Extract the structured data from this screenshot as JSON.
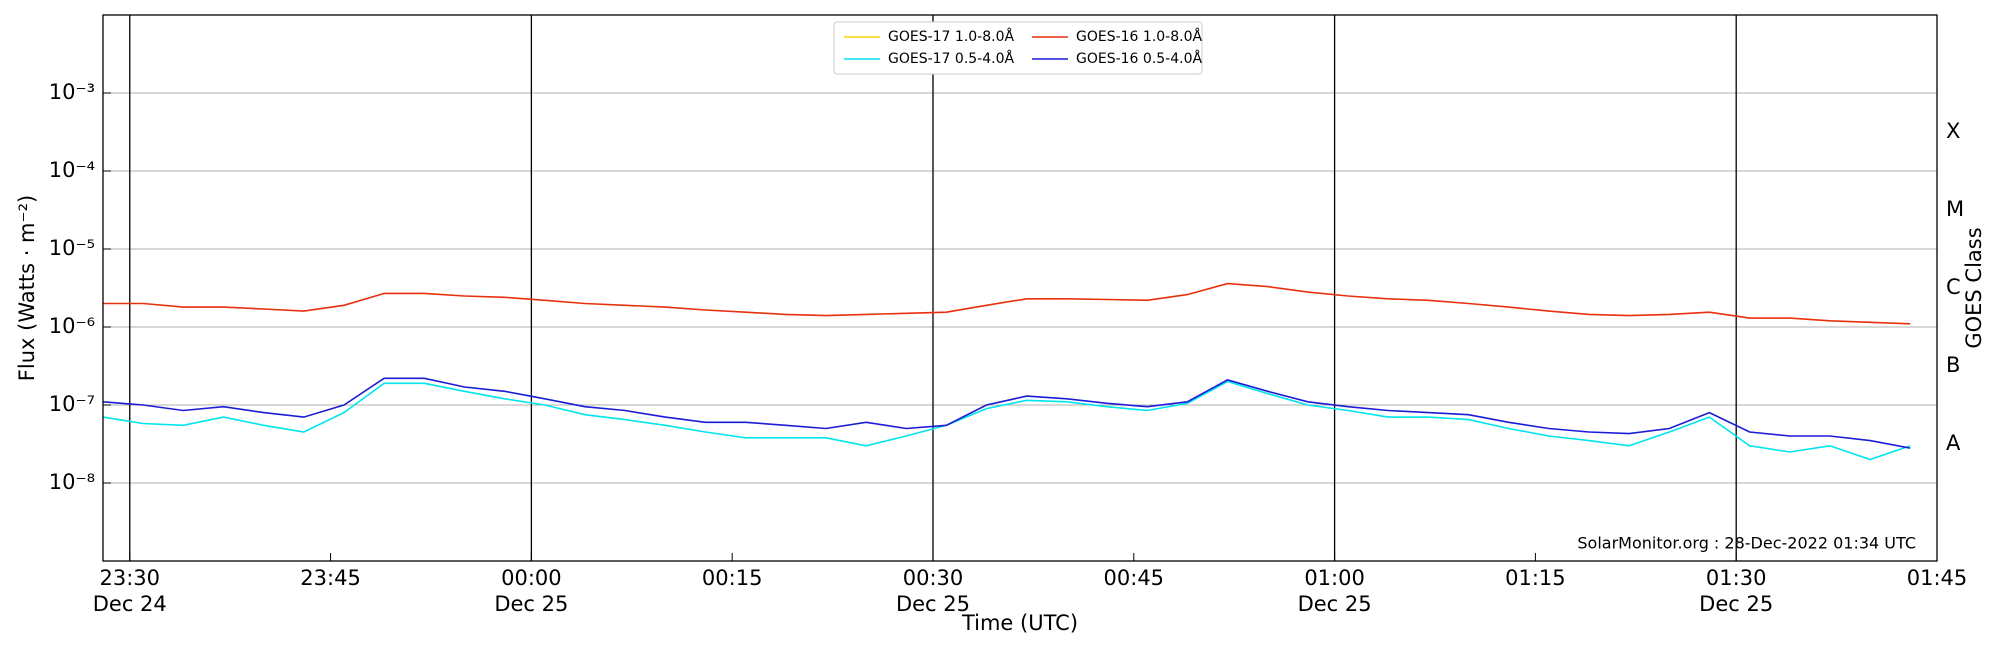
{
  "chart_data": {
    "type": "line",
    "y_label": "Flux (Watts · m⁻²)",
    "x_label": "Time (UTC)",
    "y2_label": "GOES Class",
    "footer": "SolarMonitor.org : 28-Dec-2022 01:34 UTC",
    "log_scale": true,
    "grid": true,
    "legend": "upper center",
    "xlim": [
      "12-24 23:28",
      "12-25 01:45"
    ],
    "xticks": [
      {
        "value": "12-24 23:30",
        "label": [
          "23:30",
          "Dec 24"
        ]
      },
      {
        "value": "12-24 23:45",
        "label": [
          "23:45"
        ]
      },
      {
        "value": "12-25 00:00",
        "label": [
          "00:00",
          "Dec 25"
        ]
      },
      {
        "value": "12-25 00:15",
        "label": [
          "00:15"
        ]
      },
      {
        "value": "12-25 00:30",
        "label": [
          "00:30",
          "Dec 25"
        ]
      },
      {
        "value": "12-25 00:45",
        "label": [
          "00:45"
        ]
      },
      {
        "value": "12-25 01:00",
        "label": [
          "01:00",
          "Dec 25"
        ]
      },
      {
        "value": "12-25 01:15",
        "label": [
          "01:15"
        ]
      },
      {
        "value": "12-25 01:30",
        "label": [
          "01:30",
          "Dec 25"
        ]
      },
      {
        "value": "12-25 01:45",
        "label": [
          "01:45"
        ]
      }
    ],
    "ylim": [
      1e-09,
      0.01
    ],
    "yticks": [
      {
        "value": 1e-08,
        "label": "10⁻⁸"
      },
      {
        "value": 1e-07,
        "label": "10⁻⁷"
      },
      {
        "value": 1e-06,
        "label": "10⁻⁶"
      },
      {
        "value": 1e-05,
        "label": "10⁻⁵"
      },
      {
        "value": 0.0001,
        "label": "10⁻⁴"
      },
      {
        "value": 0.001,
        "label": "10⁻³"
      }
    ],
    "y2lim": [
      1e-09,
      0.01
    ],
    "y2ticks": [
      {
        "value": 3.16e-08,
        "label": "A"
      },
      {
        "value": 3.16e-07,
        "label": "B"
      },
      {
        "value": 3.16e-06,
        "label": "C"
      },
      {
        "value": 3.16e-05,
        "label": "M"
      },
      {
        "value": 0.000316,
        "label": "X"
      }
    ],
    "x": [
      "12-24 23:28",
      "12-24 23:31",
      "12-24 23:34",
      "12-24 23:37",
      "12-24 23:40",
      "12-24 23:43",
      "12-24 23:46",
      "12-24 23:49",
      "12-24 23:52",
      "12-24 23:55",
      "12-24 23:58",
      "12-25 00:01",
      "12-25 00:04",
      "12-25 00:07",
      "12-25 00:10",
      "12-25 00:13",
      "12-25 00:16",
      "12-25 00:19",
      "12-25 00:22",
      "12-25 00:25",
      "12-25 00:28",
      "12-25 00:31",
      "12-25 00:34",
      "12-25 00:37",
      "12-25 00:40",
      "12-25 00:43",
      "12-25 00:46",
      "12-25 00:49",
      "12-25 00:52",
      "12-25 00:55",
      "12-25 00:58",
      "12-25 01:01",
      "12-25 01:04",
      "12-25 01:07",
      "12-25 01:10",
      "12-25 01:13",
      "12-25 01:16",
      "12-25 01:19",
      "12-25 01:22",
      "12-25 01:25",
      "12-25 01:28",
      "12-25 01:31",
      "12-25 01:34",
      "12-25 01:37",
      "12-25 01:40",
      "12-25 01:43"
    ],
    "series": [
      {
        "name": "GOES-17 1.0-8.0Å",
        "color": "#ffd700",
        "values": [
          null,
          null,
          null,
          null,
          null,
          null,
          null,
          null,
          null,
          null,
          null,
          null,
          null,
          null,
          null,
          null,
          null,
          null,
          null,
          null,
          null,
          null,
          null,
          null,
          null,
          null,
          null,
          null,
          null,
          null,
          null,
          null,
          null,
          null,
          null,
          null,
          null,
          null,
          null,
          null,
          null,
          null,
          null,
          null,
          null,
          null
        ]
      },
      {
        "name": "GOES-17 0.5-4.0Å",
        "color": "#00e5ee",
        "values": [
          7e-08,
          5.8e-08,
          5.5e-08,
          7e-08,
          5.5e-08,
          4.5e-08,
          8e-08,
          1.9e-07,
          1.9e-07,
          1.5e-07,
          1.2e-07,
          1e-07,
          7.5e-08,
          6.5e-08,
          5.5e-08,
          4.5e-08,
          3.8e-08,
          3.8e-08,
          3.8e-08,
          3e-08,
          4e-08,
          5.5e-08,
          9e-08,
          1.15e-07,
          1.1e-07,
          9.5e-08,
          8.5e-08,
          1.05e-07,
          2e-07,
          1.4e-07,
          1e-07,
          8.5e-08,
          7e-08,
          7e-08,
          6.5e-08,
          5e-08,
          4e-08,
          3.5e-08,
          3e-08,
          4.5e-08,
          7e-08,
          3e-08,
          2.5e-08,
          3e-08,
          2e-08,
          3e-08
        ]
      },
      {
        "name": "GOES-16 1.0-8.0Å",
        "color": "#e8300e",
        "values": [
          2e-06,
          2e-06,
          1.8e-06,
          1.8e-06,
          1.7e-06,
          1.6e-06,
          1.9e-06,
          2.7e-06,
          2.7e-06,
          2.5e-06,
          2.4e-06,
          2.2e-06,
          2e-06,
          1.9e-06,
          1.8e-06,
          1.65e-06,
          1.55e-06,
          1.45e-06,
          1.4e-06,
          1.45e-06,
          1.5e-06,
          1.55e-06,
          1.9e-06,
          2.3e-06,
          2.3e-06,
          2.25e-06,
          2.2e-06,
          2.6e-06,
          3.6e-06,
          3.3e-06,
          2.8e-06,
          2.5e-06,
          2.3e-06,
          2.2e-06,
          2e-06,
          1.8e-06,
          1.6e-06,
          1.45e-06,
          1.4e-06,
          1.45e-06,
          1.55e-06,
          1.3e-06,
          1.3e-06,
          1.2e-06,
          1.15e-06,
          1.1e-06
        ]
      },
      {
        "name": "GOES-16 0.5-4.0Å",
        "color": "#1c1cd6",
        "values": [
          1.1e-07,
          1e-07,
          8.5e-08,
          9.5e-08,
          8e-08,
          7e-08,
          1e-07,
          2.2e-07,
          2.2e-07,
          1.7e-07,
          1.5e-07,
          1.2e-07,
          9.5e-08,
          8.5e-08,
          7e-08,
          6e-08,
          6e-08,
          5.5e-08,
          5e-08,
          6e-08,
          5e-08,
          5.5e-08,
          1e-07,
          1.3e-07,
          1.2e-07,
          1.05e-07,
          9.5e-08,
          1.1e-07,
          2.1e-07,
          1.5e-07,
          1.1e-07,
          9.5e-08,
          8.5e-08,
          8e-08,
          7.5e-08,
          6e-08,
          5e-08,
          4.5e-08,
          4.3e-08,
          5e-08,
          8e-08,
          4.5e-08,
          4e-08,
          4e-08,
          3.5e-08,
          2.8e-08
        ]
      }
    ]
  }
}
